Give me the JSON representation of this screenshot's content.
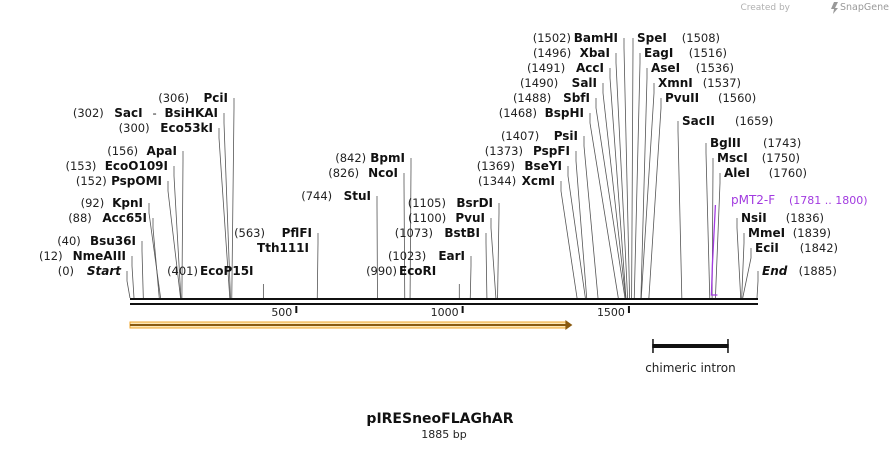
{
  "app": {
    "credit_text": "Created by",
    "brand": "SnapGene",
    "brand_icon": "snapgene-logo-icon"
  },
  "map": {
    "name": "pIRESneoFLAGhAR",
    "length_label": "1885 bp",
    "length": 1885,
    "ruler_ticks": [
      {
        "pos": 500,
        "label": "500"
      },
      {
        "pos": 1000,
        "label": "1000"
      },
      {
        "pos": 1500,
        "label": "1500"
      }
    ],
    "orf_range": [
      0,
      1330
    ],
    "orf_color": "#f0a52a"
  },
  "sites_left": [
    {
      "pos": 0,
      "pos_label": "(0)",
      "name": "Start",
      "italic": true
    },
    {
      "pos": 12,
      "pos_label": "(12)",
      "name": "NmeAIII"
    },
    {
      "pos": 40,
      "pos_label": "(40)",
      "name": "Bsu36I"
    },
    {
      "pos": 88,
      "pos_label": "(88)",
      "name": "Acc65I"
    },
    {
      "pos": 92,
      "pos_label": "(92)",
      "name": "KpnI"
    },
    {
      "pos": 152,
      "pos_label": "(152)",
      "name": "PspOMI"
    },
    {
      "pos": 153,
      "pos_label": "(153)",
      "name": "EcoO109I"
    },
    {
      "pos": 156,
      "pos_label": "(156)",
      "name": "ApaI"
    },
    {
      "pos": 300,
      "pos_label": "(300)",
      "name": "Eco53kI"
    },
    {
      "pos": 302,
      "pos_label": "(302)",
      "name": "SacI",
      "sep": "-",
      "name2": "BsiHKAI"
    },
    {
      "pos": 306,
      "pos_label": "(306)",
      "name": "PciI"
    },
    {
      "pos": 401,
      "pos_label": "(401)",
      "name": "EcoP15I",
      "right_of_label": true
    },
    {
      "pos": 563,
      "pos_label": "(563)",
      "name": "PflFI"
    },
    {
      "pos": 563,
      "name": "Tth111I",
      "no_pos": true
    },
    {
      "pos": 744,
      "pos_label": "(744)",
      "name": "StuI"
    },
    {
      "pos": 826,
      "pos_label": "(826)",
      "name": "NcoI"
    },
    {
      "pos": 842,
      "pos_label": "(842)",
      "name": "BpmI"
    },
    {
      "pos": 990,
      "pos_label": "(990)",
      "name": "EcoRI",
      "right_of_label": true
    },
    {
      "pos": 1023,
      "pos_label": "(1023)",
      "name": "EarI"
    },
    {
      "pos": 1073,
      "pos_label": "(1073)",
      "name": "BstBI"
    },
    {
      "pos": 1100,
      "pos_label": "(1100)",
      "name": "PvuI"
    },
    {
      "pos": 1105,
      "pos_label": "(1105)",
      "name": "BsrDI"
    },
    {
      "pos": 1344,
      "pos_label": "(1344)",
      "name": "XcmI"
    },
    {
      "pos": 1369,
      "pos_label": "(1369)",
      "name": "BseYI"
    },
    {
      "pos": 1373,
      "pos_label": "(1373)",
      "name": "PspFI"
    },
    {
      "pos": 1407,
      "pos_label": "(1407)",
      "name": "PsiI"
    },
    {
      "pos": 1468,
      "pos_label": "(1468)",
      "name": "BspHI"
    },
    {
      "pos": 1488,
      "pos_label": "(1488)",
      "name": "SbfI"
    },
    {
      "pos": 1490,
      "pos_label": "(1490)",
      "name": "SalI"
    },
    {
      "pos": 1491,
      "pos_label": "(1491)",
      "name": "AccI"
    },
    {
      "pos": 1496,
      "pos_label": "(1496)",
      "name": "XbaI"
    },
    {
      "pos": 1502,
      "pos_label": "(1502)",
      "name": "BamHI"
    }
  ],
  "sites_right": [
    {
      "pos": 1508,
      "pos_label": "(1508)",
      "name": "SpeI"
    },
    {
      "pos": 1516,
      "pos_label": "(1516)",
      "name": "EagI"
    },
    {
      "pos": 1536,
      "pos_label": "(1536)",
      "name": "AseI"
    },
    {
      "pos": 1537,
      "pos_label": "(1537)",
      "name": "XmnI"
    },
    {
      "pos": 1560,
      "pos_label": "(1560)",
      "name": "PvuII"
    },
    {
      "pos": 1659,
      "pos_label": "(1659)",
      "name": "SacII"
    },
    {
      "pos": 1743,
      "pos_label": "(1743)",
      "name": "BglII"
    },
    {
      "pos": 1750,
      "pos_label": "(1750)",
      "name": "MscI"
    },
    {
      "pos": 1760,
      "pos_label": "(1760)",
      "name": "AleI"
    },
    {
      "pos": 1836,
      "pos_label": "(1836)",
      "name": "NsiI"
    },
    {
      "pos": 1839,
      "pos_label": "(1839)",
      "name": "MmeI"
    },
    {
      "pos": 1842,
      "pos_label": "(1842)",
      "name": "EciI"
    },
    {
      "pos": 1885,
      "pos_label": "(1885)",
      "name": "End",
      "italic": true
    }
  ],
  "primer": {
    "name": "pMT2-F",
    "range_label": "(1781 .. 1800)",
    "start": 1781,
    "end": 1800,
    "color": "#a23be0"
  },
  "feature": {
    "name": "chimeric intron",
    "start": 1570,
    "end": 1800
  }
}
